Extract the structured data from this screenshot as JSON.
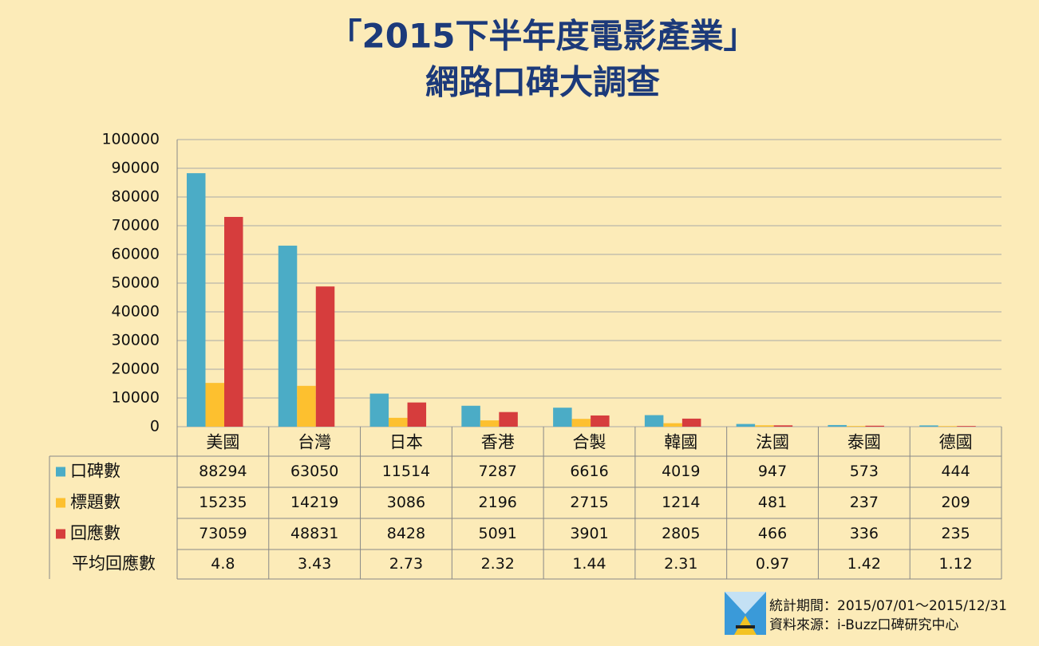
{
  "chart_data": {
    "type": "bar",
    "title": "「2015下半年度電影產業」",
    "subtitle": "網路口碑大調查",
    "categories": [
      "美國",
      "台灣",
      "日本",
      "香港",
      "合製",
      "韓國",
      "法國",
      "泰國",
      "德國"
    ],
    "series": [
      {
        "name": "口碑數",
        "color": "#4bacc6",
        "values": [
          88294,
          63050,
          11514,
          7287,
          6616,
          4019,
          947,
          573,
          444
        ]
      },
      {
        "name": "標題數",
        "color": "#fdc02f",
        "values": [
          15235,
          14219,
          3086,
          2196,
          2715,
          1214,
          481,
          237,
          209
        ]
      },
      {
        "name": "回應數",
        "color": "#d63d3d",
        "values": [
          73059,
          48831,
          8428,
          5091,
          3901,
          2805,
          466,
          336,
          235
        ]
      }
    ],
    "extra_rows": [
      {
        "name": "平均回應數",
        "values": [
          4.8,
          3.43,
          2.73,
          2.32,
          1.44,
          2.31,
          0.97,
          1.42,
          1.12
        ]
      }
    ],
    "ylim": [
      0,
      100000
    ],
    "yticks": [
      0,
      10000,
      20000,
      30000,
      40000,
      50000,
      60000,
      70000,
      80000,
      90000,
      100000
    ],
    "grid": true,
    "notes": [
      "統計期間：2015/07/01～2015/12/31",
      "資料來源：i-Buzz口碑研究中心"
    ]
  }
}
